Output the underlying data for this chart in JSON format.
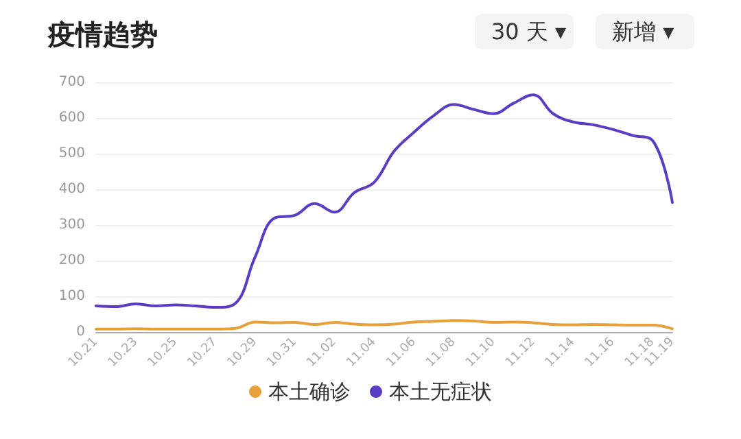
{
  "chart_data": {
    "type": "line",
    "title": "疫情趋势",
    "annotations": [
      "30 天 ▾",
      "新增 ▾"
    ],
    "categories": [
      "10.21",
      null,
      "10.23",
      null,
      "10.25",
      null,
      "10.27",
      null,
      "10.29",
      null,
      "10.31",
      null,
      "11.02",
      null,
      "11.04",
      null,
      "11.06",
      null,
      "11.08",
      null,
      "11.10",
      null,
      "11.12",
      null,
      "11.14",
      null,
      "11.16",
      null,
      "11.18",
      "11.19"
    ],
    "series": [
      {
        "name": "本土确诊",
        "color": "#e8a13a",
        "values": [
          8,
          8,
          9,
          8,
          8,
          8,
          8,
          10,
          28,
          26,
          27,
          21,
          27,
          22,
          20,
          22,
          28,
          30,
          32,
          31,
          27,
          28,
          26,
          21,
          20,
          21,
          20,
          19,
          19,
          9
        ]
      },
      {
        "name": "本土无症状",
        "color": "#5b3cc4",
        "values": [
          73,
          71,
          79,
          73,
          76,
          73,
          69,
          80,
          210,
          320,
          327,
          360,
          336,
          391,
          420,
          507,
          560,
          607,
          638,
          624,
          612,
          641,
          665,
          612,
          589,
          581,
          568,
          551,
          537,
          363
        ]
      }
    ],
    "ylim": [
      0,
      700
    ],
    "yticks": [
      0,
      100,
      200,
      300,
      400,
      500,
      600,
      700
    ],
    "grid": "y",
    "legend": "bottom",
    "marker": "none",
    "line_style": "solid"
  }
}
